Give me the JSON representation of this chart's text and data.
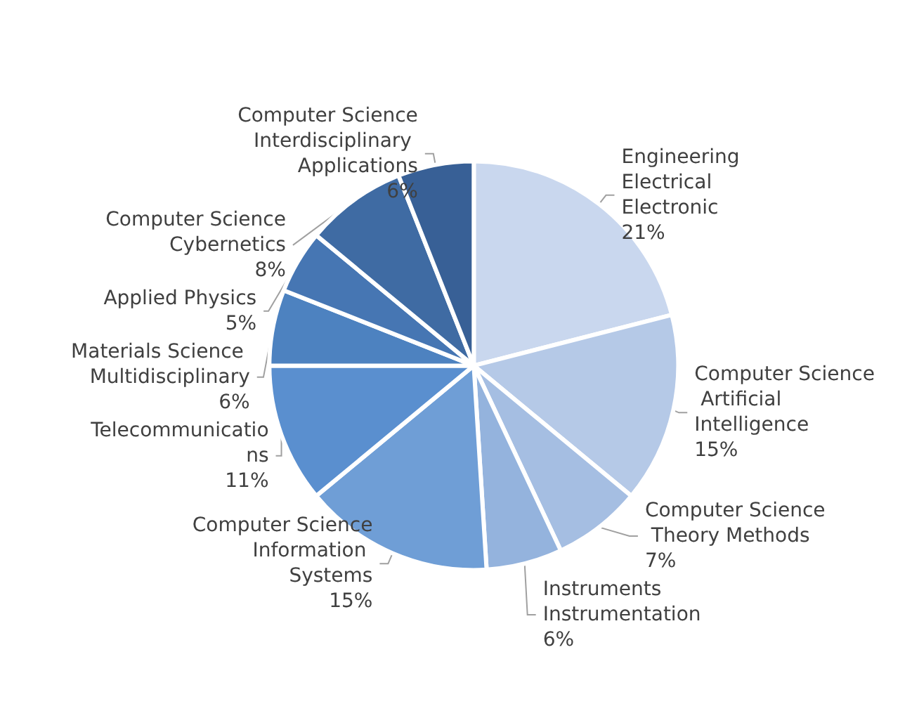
{
  "chart_data": {
    "type": "pie",
    "categories": [
      "Engineering Electrical Electronic",
      "Computer Science Artificial Intelligence",
      "Computer Science Theory Methods",
      "Instruments Instrumentation",
      "Computer Science Information Systems",
      "Telecommunications",
      "Materials Science Multidisciplinary",
      "Applied Physics",
      "Computer Science Cybernetics",
      "Computer Science Interdisciplinary Applications"
    ],
    "values": [
      21,
      15,
      7,
      6,
      15,
      11,
      6,
      5,
      8,
      6
    ],
    "value_labels": [
      "21%",
      "15%",
      "7%",
      "6%",
      "15%",
      "11%",
      "6%",
      "5%",
      "8%",
      "6%"
    ],
    "colors": [
      "#c9d7ee",
      "#b5c9e7",
      "#a5bee2",
      "#94b3dd",
      "#6f9ed6",
      "#5a8fcf",
      "#4d82c0",
      "#4676b3",
      "#3f6ba3",
      "#386096"
    ]
  }
}
